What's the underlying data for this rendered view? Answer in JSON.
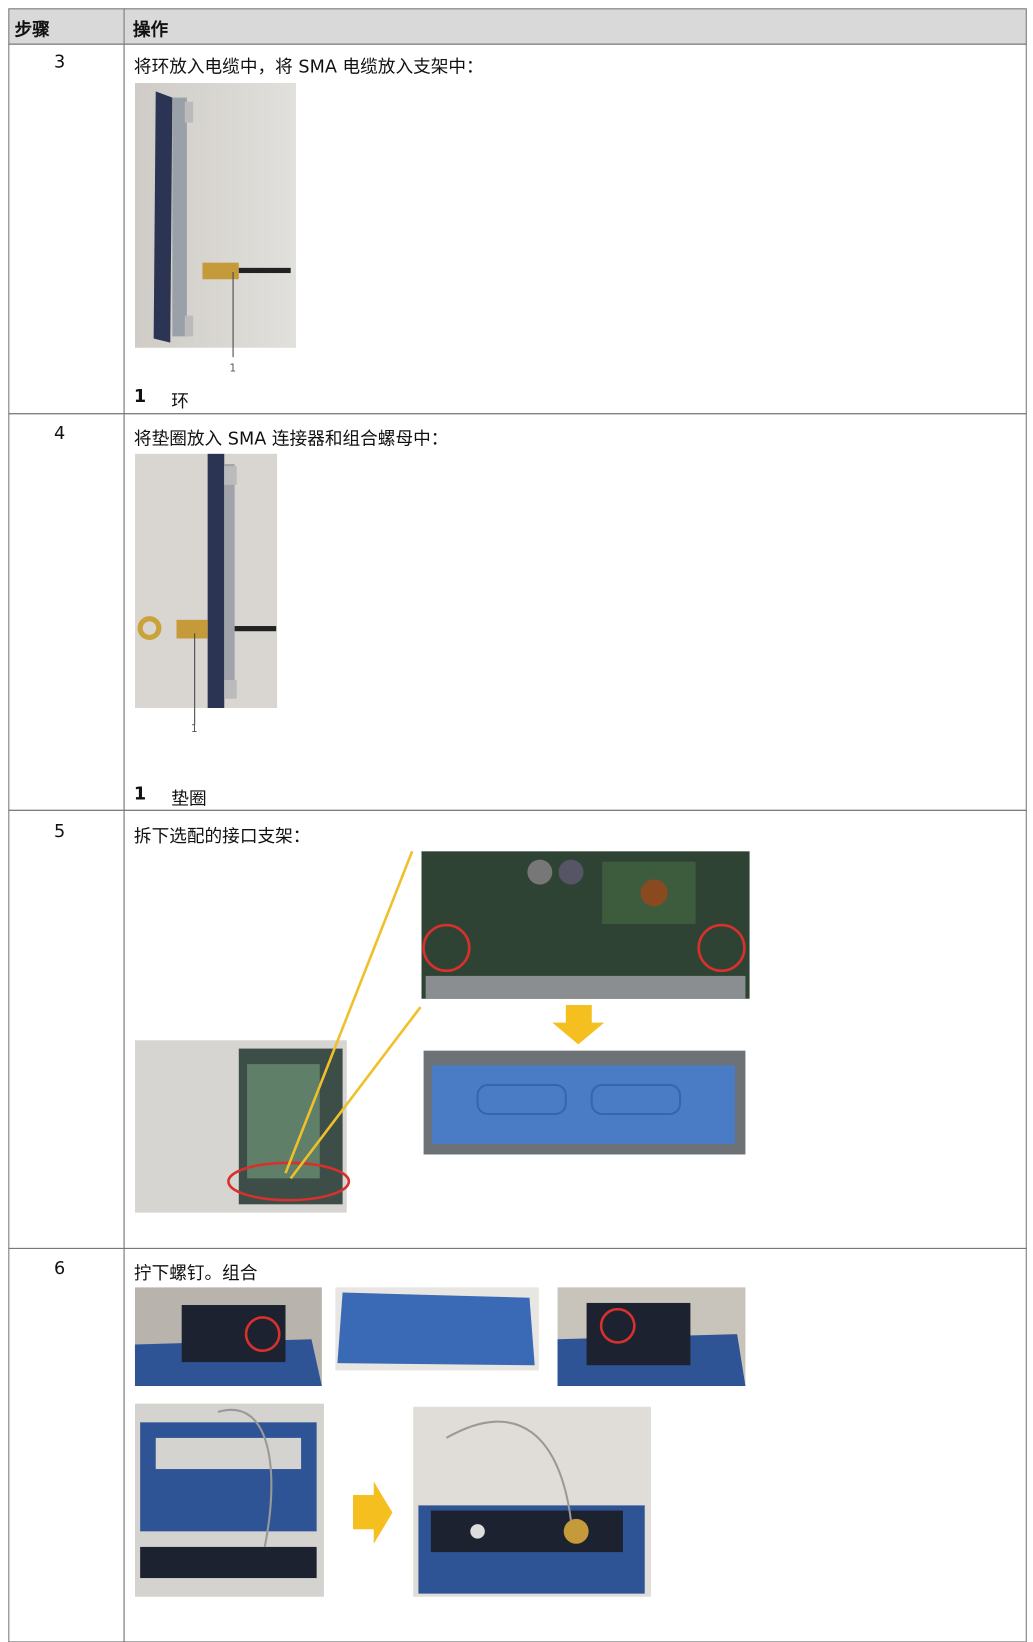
{
  "table": {
    "header": [
      "步骤",
      "操作"
    ],
    "rows": [
      {
        "step": "3",
        "text": "将环放入电缆中，将 SMA 电缆放入支架中：",
        "callout": "1",
        "legend_number": "1",
        "legend_text": "环"
      },
      {
        "step": "4",
        "text": "将垫圈放入 SMA 连接器和组合螺母中：",
        "callout": "1",
        "legend_number": "1",
        "legend_text": "垫圈"
      },
      {
        "step": "5",
        "text": "拆下选配的接口支架："
      },
      {
        "step": "6",
        "text": "拧下螺钉。组合"
      }
    ]
  }
}
